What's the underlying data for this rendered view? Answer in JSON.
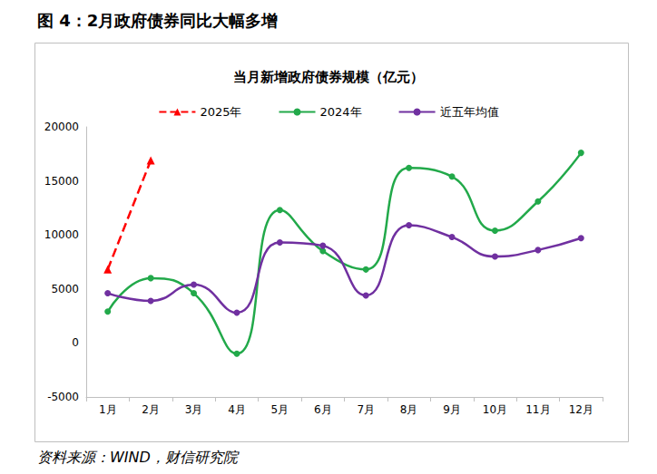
{
  "chart_data": {
    "type": "line",
    "title": "当月新增政府债券规模（亿元）",
    "annotations": [
      "图 4：2月政府债券同比大幅多增",
      "资料来源：WIND，财信研究院"
    ],
    "categories": [
      "1月",
      "2月",
      "3月",
      "4月",
      "5月",
      "6月",
      "7月",
      "8月",
      "9月",
      "10月",
      "11月",
      "12月"
    ],
    "series": [
      {
        "name": "2025年",
        "color": "#ff0000",
        "marker": "triangle",
        "line_style": "dashed",
        "values": [
          6800,
          16900,
          null,
          null,
          null,
          null,
          null,
          null,
          null,
          null,
          null,
          null
        ]
      },
      {
        "name": "2024年",
        "color": "#22a94a",
        "marker": "circle",
        "line_style": "smooth",
        "values": [
          2900,
          6000,
          4600,
          -1000,
          12300,
          8500,
          6800,
          16200,
          15400,
          10400,
          13100,
          17600
        ]
      },
      {
        "name": "近五年均值",
        "color": "#7030a0",
        "marker": "circle",
        "line_style": "smooth",
        "values": [
          4600,
          3900,
          5400,
          2800,
          9300,
          9000,
          4400,
          10900,
          9800,
          8000,
          8600,
          9700
        ]
      }
    ],
    "ylim": [
      -5000,
      20000
    ],
    "yticks": [
      -5000,
      0,
      5000,
      10000,
      15000,
      20000
    ],
    "grid": false,
    "legend": "top"
  }
}
